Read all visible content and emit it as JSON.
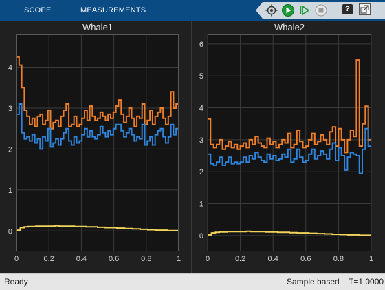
{
  "toolbar": {
    "tabs": [
      "SCOPE",
      "MEASUREMENTS"
    ],
    "help_label": "?"
  },
  "status": {
    "left": "Ready",
    "mode": "Sample based",
    "time": "T=1.0000"
  },
  "colors": {
    "background": "#141414",
    "grid": "#3c3c3c",
    "series_blue": "#2e86de",
    "series_orange": "#f07f2a",
    "series_yellow": "#f3d45a",
    "toolbar": "#0a4b83"
  },
  "chart_data": [
    {
      "type": "line",
      "title": "Whale1",
      "xlim": [
        0,
        1
      ],
      "ylim": [
        -0.5,
        4.8
      ],
      "xticks": [
        "0",
        "0.2",
        "0.4",
        "0.6",
        "0.8",
        "1"
      ],
      "yticks": [
        "0",
        "1",
        "2",
        "3",
        "4"
      ],
      "grid": true,
      "series": [
        {
          "color": "orange",
          "values": [
            4.25,
            4.05,
            3.5,
            2.95,
            2.8,
            2.6,
            2.75,
            2.55,
            2.8,
            2.85,
            2.6,
            2.7,
            2.95,
            2.5,
            2.65,
            2.7,
            2.55,
            2.8,
            2.95,
            3.1,
            2.55,
            2.6,
            2.8,
            2.55,
            2.6,
            2.75,
            2.95,
            2.7,
            3.05,
            2.8,
            2.7,
            2.75,
            2.9,
            2.8,
            2.7,
            2.85,
            2.75,
            2.9,
            3.05,
            3.2,
            2.85,
            2.65,
            2.8,
            3.0,
            2.75,
            2.55,
            2.8,
            2.75,
            3.1,
            2.6,
            2.7,
            2.95,
            2.6,
            2.8,
            2.9,
            3.0,
            2.75,
            2.6,
            2.8,
            3.4,
            3.0,
            3.1
          ]
        },
        {
          "color": "blue",
          "values": [
            2.85,
            3.1,
            2.4,
            2.25,
            2.3,
            2.2,
            2.35,
            2.15,
            2.25,
            2.0,
            2.3,
            2.2,
            2.5,
            2.05,
            2.15,
            2.25,
            2.1,
            2.25,
            2.4,
            2.5,
            2.2,
            2.1,
            2.3,
            2.15,
            2.2,
            2.35,
            2.5,
            2.3,
            2.45,
            2.3,
            2.25,
            2.35,
            2.55,
            2.4,
            2.3,
            2.45,
            2.35,
            2.5,
            2.6,
            2.6,
            2.45,
            2.3,
            2.4,
            2.5,
            2.35,
            2.2,
            2.3,
            2.25,
            2.6,
            2.1,
            2.2,
            2.3,
            2.1,
            2.35,
            2.45,
            2.5,
            2.3,
            2.15,
            2.3,
            2.6,
            2.35,
            2.5
          ]
        },
        {
          "color": "yellow",
          "values": [
            0.02,
            0.08,
            0.1,
            0.11,
            0.11,
            0.12,
            0.12,
            0.12,
            0.12,
            0.12,
            0.13,
            0.12,
            0.12,
            0.12,
            0.12,
            0.11,
            0.11,
            0.11,
            0.1,
            0.1,
            0.1,
            0.09,
            0.09,
            0.08,
            0.08,
            0.08,
            0.07,
            0.07,
            0.06,
            0.06,
            0.05,
            0.05,
            0.04,
            0.04,
            0.03,
            0.03,
            0.02,
            0.02,
            0.02,
            0.01,
            0.01,
            0.01
          ]
        }
      ]
    },
    {
      "type": "line",
      "title": "Whale2",
      "xlim": [
        0,
        1
      ],
      "ylim": [
        -0.5,
        6.3
      ],
      "xticks": [
        "0",
        "0.2",
        "0.4",
        "0.6",
        "0.8",
        "1"
      ],
      "yticks": [
        "0",
        "1",
        "2",
        "3",
        "4",
        "5",
        "6"
      ],
      "grid": true,
      "series": [
        {
          "color": "orange",
          "values": [
            3.65,
            2.85,
            2.75,
            2.85,
            3.0,
            2.7,
            2.8,
            2.95,
            2.75,
            2.85,
            2.7,
            2.8,
            2.9,
            2.75,
            3.0,
            2.85,
            3.1,
            2.9,
            2.8,
            2.75,
            3.05,
            2.85,
            2.95,
            2.75,
            2.85,
            3.0,
            2.9,
            3.2,
            2.75,
            2.85,
            3.3,
            2.95,
            2.75,
            2.8,
            3.0,
            3.2,
            2.85,
            2.95,
            3.15,
            3.0,
            2.85,
            3.25,
            3.4,
            2.8,
            3.35,
            3.0,
            2.6,
            3.0,
            3.3,
            3.1,
            5.5,
            2.8,
            3.5,
            4.05,
            3.0
          ]
        },
        {
          "color": "blue",
          "values": [
            2.55,
            2.25,
            2.2,
            2.3,
            2.45,
            2.2,
            2.3,
            2.45,
            2.25,
            2.3,
            2.25,
            2.3,
            2.45,
            2.3,
            2.5,
            2.4,
            2.6,
            2.45,
            2.35,
            2.3,
            2.55,
            2.4,
            2.5,
            2.35,
            2.4,
            2.55,
            2.45,
            2.7,
            2.3,
            2.4,
            2.7,
            2.45,
            2.3,
            2.35,
            2.55,
            2.7,
            2.4,
            2.5,
            2.65,
            2.55,
            2.4,
            2.7,
            2.9,
            2.35,
            2.75,
            2.5,
            2.05,
            2.45,
            2.6,
            2.55,
            2.5,
            1.95,
            2.7,
            3.35,
            2.8
          ]
        },
        {
          "color": "yellow",
          "values": [
            0.02,
            0.08,
            0.1,
            0.11,
            0.11,
            0.12,
            0.12,
            0.12,
            0.12,
            0.12,
            0.13,
            0.12,
            0.12,
            0.12,
            0.12,
            0.11,
            0.11,
            0.11,
            0.1,
            0.1,
            0.1,
            0.09,
            0.09,
            0.08,
            0.08,
            0.08,
            0.07,
            0.07,
            0.06,
            0.06,
            0.05,
            0.05,
            0.04,
            0.04,
            0.03,
            0.03,
            0.02,
            0.02,
            0.02,
            0.01,
            0.01,
            0.01
          ]
        }
      ]
    }
  ]
}
